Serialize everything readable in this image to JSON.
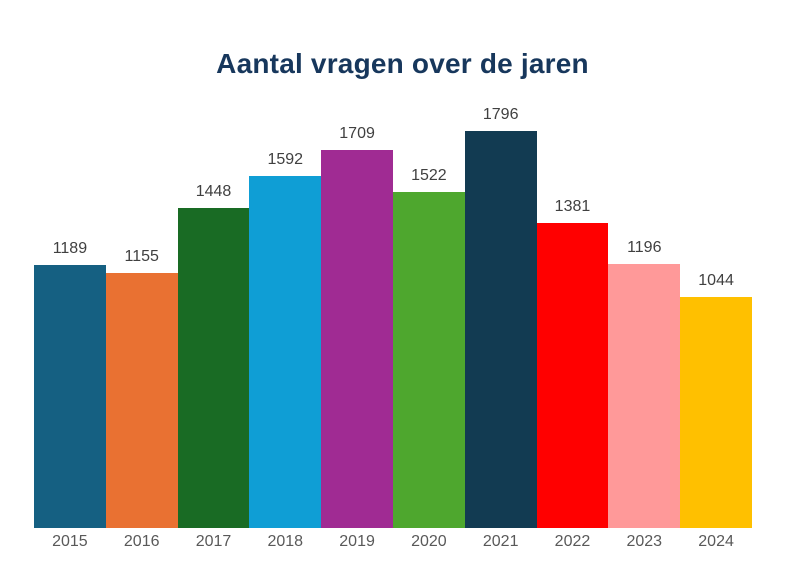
{
  "chart_data": {
    "type": "bar",
    "title": "Aantal vragen over de jaren",
    "categories": [
      "2015",
      "2016",
      "2017",
      "2018",
      "2019",
      "2020",
      "2021",
      "2022",
      "2023",
      "2024"
    ],
    "values": [
      1189,
      1155,
      1448,
      1592,
      1709,
      1522,
      1796,
      1381,
      1196,
      1044
    ],
    "bar_colors": [
      "#156082",
      "#E97132",
      "#196B24",
      "#0F9ED5",
      "#A02B93",
      "#4EA72E",
      "#123B52",
      "#FF0000",
      "#FF9999",
      "#FFC000"
    ],
    "value_labels": [
      "1189",
      "1155",
      "1448",
      "1592",
      "1709",
      "1522",
      "1796",
      "1381",
      "1196",
      "1044"
    ],
    "xlabel": "",
    "ylabel": "",
    "ylim": [
      0,
      1796
    ],
    "grid": false,
    "legend": "none",
    "colors": {
      "title": "#17375C",
      "value_label": "#404040",
      "axis_label": "#595959",
      "background": "#FFFFFF"
    }
  }
}
